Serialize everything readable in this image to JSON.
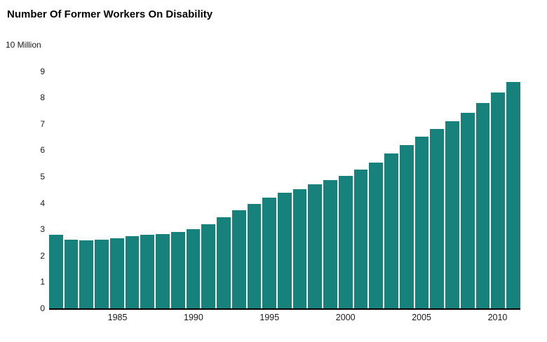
{
  "chart_data": {
    "type": "bar",
    "title": "Number Of Former Workers On Disability",
    "xlabel": "",
    "ylabel": "",
    "unit_label": "10 Million",
    "bar_color": "#17827c",
    "ylim": [
      0,
      10
    ],
    "grid": false,
    "legend": "none",
    "x": [
      1981,
      1982,
      1983,
      1984,
      1985,
      1986,
      1987,
      1988,
      1989,
      1990,
      1991,
      1992,
      1993,
      1994,
      1995,
      1996,
      1997,
      1998,
      1999,
      2000,
      2001,
      2002,
      2003,
      2004,
      2005,
      2006,
      2007,
      2008,
      2009,
      2010,
      2011
    ],
    "values": [
      2.78,
      2.6,
      2.57,
      2.6,
      2.65,
      2.73,
      2.79,
      2.83,
      2.9,
      3.01,
      3.19,
      3.47,
      3.73,
      3.96,
      4.19,
      4.39,
      4.51,
      4.7,
      4.88,
      5.04,
      5.27,
      5.54,
      5.87,
      6.2,
      6.52,
      6.81,
      7.1,
      7.43,
      7.79,
      8.2,
      8.58
    ],
    "yticks": [
      {
        "value": 0,
        "label": "0"
      },
      {
        "value": 1,
        "label": "1"
      },
      {
        "value": 2,
        "label": "2"
      },
      {
        "value": 3,
        "label": "3"
      },
      {
        "value": 4,
        "label": "4"
      },
      {
        "value": 5,
        "label": "5"
      },
      {
        "value": 6,
        "label": "6"
      },
      {
        "value": 7,
        "label": "7"
      },
      {
        "value": 8,
        "label": "8"
      },
      {
        "value": 9,
        "label": "9"
      },
      {
        "value": 10,
        "label": "10 Million"
      }
    ],
    "xticks": [
      1985,
      1990,
      1995,
      2000,
      2005,
      2010
    ]
  }
}
